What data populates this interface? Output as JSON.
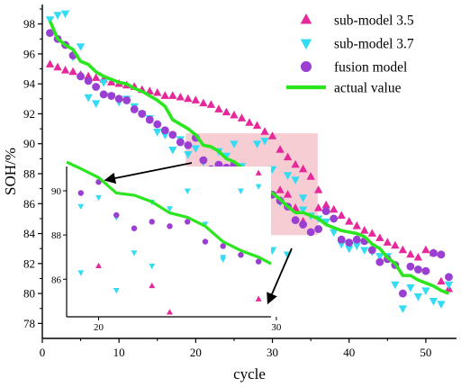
{
  "chart_data": {
    "type": "scatter",
    "xlabel": "cycle",
    "ylabel": "SOH/%",
    "xlim": [
      0,
      54
    ],
    "ylim": [
      77,
      99.3
    ],
    "xticks": [
      0,
      10,
      20,
      30,
      40,
      50
    ],
    "yticks": [
      78,
      80,
      82,
      84,
      86,
      88,
      90,
      92,
      94,
      96,
      98
    ],
    "grid": false,
    "legend_position": "top-right",
    "colors": {
      "sub_model_3_5": "#e6289a",
      "sub_model_3_7": "#33dcf2",
      "fusion_model": "#9b3fd3",
      "actual_value": "#2be61f",
      "zoom_box": "#f6c4cd",
      "arrows": "#000000"
    },
    "series": [
      {
        "name": "sub-model 3.5",
        "marker": "triangle-up",
        "x": [
          1,
          2,
          3,
          4,
          5,
          6,
          7,
          8,
          9,
          10,
          11,
          12,
          13,
          14,
          15,
          16,
          17,
          18,
          19,
          20,
          21,
          22,
          23,
          24,
          25,
          26,
          27,
          28,
          29,
          30,
          31,
          32,
          33,
          34,
          35,
          36,
          37,
          38,
          39,
          40,
          41,
          42,
          43,
          44,
          45,
          46,
          47,
          48,
          49,
          50,
          51,
          52,
          53,
          20,
          23,
          29,
          31,
          32,
          33,
          34,
          36,
          28,
          24
        ],
        "y": [
          95.3,
          95.1,
          94.9,
          94.8,
          94.6,
          94.5,
          94.4,
          94.3,
          94.1,
          94.0,
          93.9,
          93.8,
          93.6,
          93.5,
          93.4,
          93.2,
          93.2,
          93.1,
          93.0,
          92.9,
          92.7,
          92.6,
          92.3,
          92.1,
          91.9,
          91.7,
          91.4,
          91.2,
          90.8,
          90.5,
          89.6,
          89.1,
          88.6,
          88.3,
          87.8,
          86.9,
          85.9,
          85.6,
          85.2,
          84.8,
          84.5,
          84.2,
          84.0,
          83.7,
          83.4,
          83.2,
          82.9,
          82.6,
          82.4,
          82.9,
          82.7,
          80.8,
          80.3,
          86.6,
          85.7,
          85.1,
          86.9,
          86.6,
          85.7,
          84.8,
          85.7,
          83.0,
          84.5
        ]
      },
      {
        "name": "sub-model 3.7",
        "marker": "triangle-down",
        "x": [
          1,
          2,
          3,
          4,
          5,
          6,
          7,
          8,
          9,
          10,
          11,
          12,
          13,
          14,
          15,
          16,
          17,
          18,
          19,
          20,
          21,
          22,
          23,
          24,
          25,
          26,
          27,
          28,
          29,
          30,
          31,
          32,
          33,
          34,
          35,
          36,
          37,
          38,
          39,
          40,
          41,
          42,
          43,
          44,
          45,
          46,
          47,
          48,
          49,
          50,
          51,
          52,
          53,
          19,
          21,
          23,
          25,
          27,
          29,
          30,
          32,
          34
        ],
        "y": [
          98.3,
          98.6,
          98.7,
          95.8,
          96.5,
          93.1,
          92.7,
          94.1,
          93.2,
          92.8,
          93.0,
          92.5,
          92.0,
          91.7,
          90.8,
          90.6,
          89.6,
          90.3,
          89.3,
          89.7,
          88.8,
          87.2,
          89.5,
          89.2,
          90.0,
          88.5,
          86.9,
          90.0,
          90.2,
          88.3,
          86.1,
          87.9,
          87.6,
          86.4,
          85.2,
          85.0,
          84.8,
          84.1,
          83.3,
          83.0,
          83.2,
          82.9,
          82.8,
          82.5,
          82.5,
          80.6,
          79.0,
          80.4,
          79.8,
          80.2,
          79.5,
          79.3,
          80.6,
          86.3,
          85.5,
          86.6,
          84.2,
          87.0,
          84.0,
          82.9,
          82.6,
          85.6
        ]
      },
      {
        "name": "fusion model",
        "marker": "circle",
        "x": [
          1,
          2,
          3,
          4,
          5,
          6,
          7,
          8,
          9,
          10,
          11,
          12,
          13,
          14,
          15,
          16,
          17,
          18,
          19,
          20,
          21,
          22,
          23,
          24,
          25,
          26,
          27,
          28,
          29,
          30,
          31,
          32,
          33,
          34,
          35,
          36,
          37,
          38,
          39,
          40,
          41,
          42,
          43,
          44,
          45,
          46,
          47,
          48,
          49,
          50,
          51,
          52,
          53
        ],
        "y": [
          97.4,
          97.0,
          96.6,
          95.9,
          94.5,
          94.2,
          93.8,
          93.3,
          93.2,
          93.0,
          92.9,
          92.3,
          92.0,
          91.6,
          91.3,
          90.9,
          90.6,
          90.1,
          89.9,
          90.4,
          88.9,
          88.3,
          88.6,
          88.4,
          88.6,
          87.7,
          87.5,
          87.1,
          86.8,
          86.6,
          86.2,
          85.8,
          84.9,
          84.6,
          84.1,
          84.3,
          85.5,
          85.0,
          83.6,
          83.4,
          83.6,
          83.5,
          82.9,
          82.1,
          82.3,
          81.9,
          80.0,
          81.8,
          81.6,
          81.5,
          82.7,
          82.6,
          81.1
        ]
      },
      {
        "name": "actual value",
        "marker": "line",
        "x": [
          1,
          2,
          3,
          4,
          5,
          6,
          7,
          8,
          9,
          10,
          11,
          12,
          13,
          14,
          15,
          16,
          17,
          18,
          19,
          20,
          21,
          22,
          23,
          24,
          25,
          26,
          27,
          28,
          29,
          30,
          31,
          32,
          33,
          34,
          35,
          36,
          37,
          38,
          39,
          40,
          41,
          42,
          43,
          44,
          45,
          46,
          47,
          48,
          49,
          50,
          51,
          52,
          53
        ],
        "y": [
          98.2,
          97.0,
          96.6,
          96.3,
          95.5,
          95.3,
          94.8,
          94.5,
          94.3,
          94.1,
          94.0,
          93.7,
          93.5,
          93.2,
          92.9,
          92.5,
          91.6,
          91.3,
          91.0,
          90.6,
          89.9,
          89.8,
          89.5,
          89.0,
          88.8,
          88.4,
          87.7,
          87.3,
          87.0,
          86.7,
          86.3,
          85.8,
          85.4,
          85.4,
          85.2,
          85.0,
          84.6,
          84.4,
          84.2,
          84.1,
          84.0,
          83.8,
          83.3,
          83.0,
          82.4,
          82.0,
          81.2,
          81.2,
          80.9,
          80.7,
          80.5,
          80.2,
          80.0
        ]
      }
    ],
    "zoom_region": {
      "x": [
        18.7,
        35.9
      ],
      "y": [
        83.9,
        90.7
      ]
    },
    "inset": {
      "description_of_range": "magnified view of the shaded region",
      "xticks": [
        20,
        30
      ],
      "yticks": [
        86,
        88,
        90
      ],
      "xlim": [
        18.2,
        29.7
      ],
      "ylim": [
        84.3,
        91.1
      ]
    }
  }
}
